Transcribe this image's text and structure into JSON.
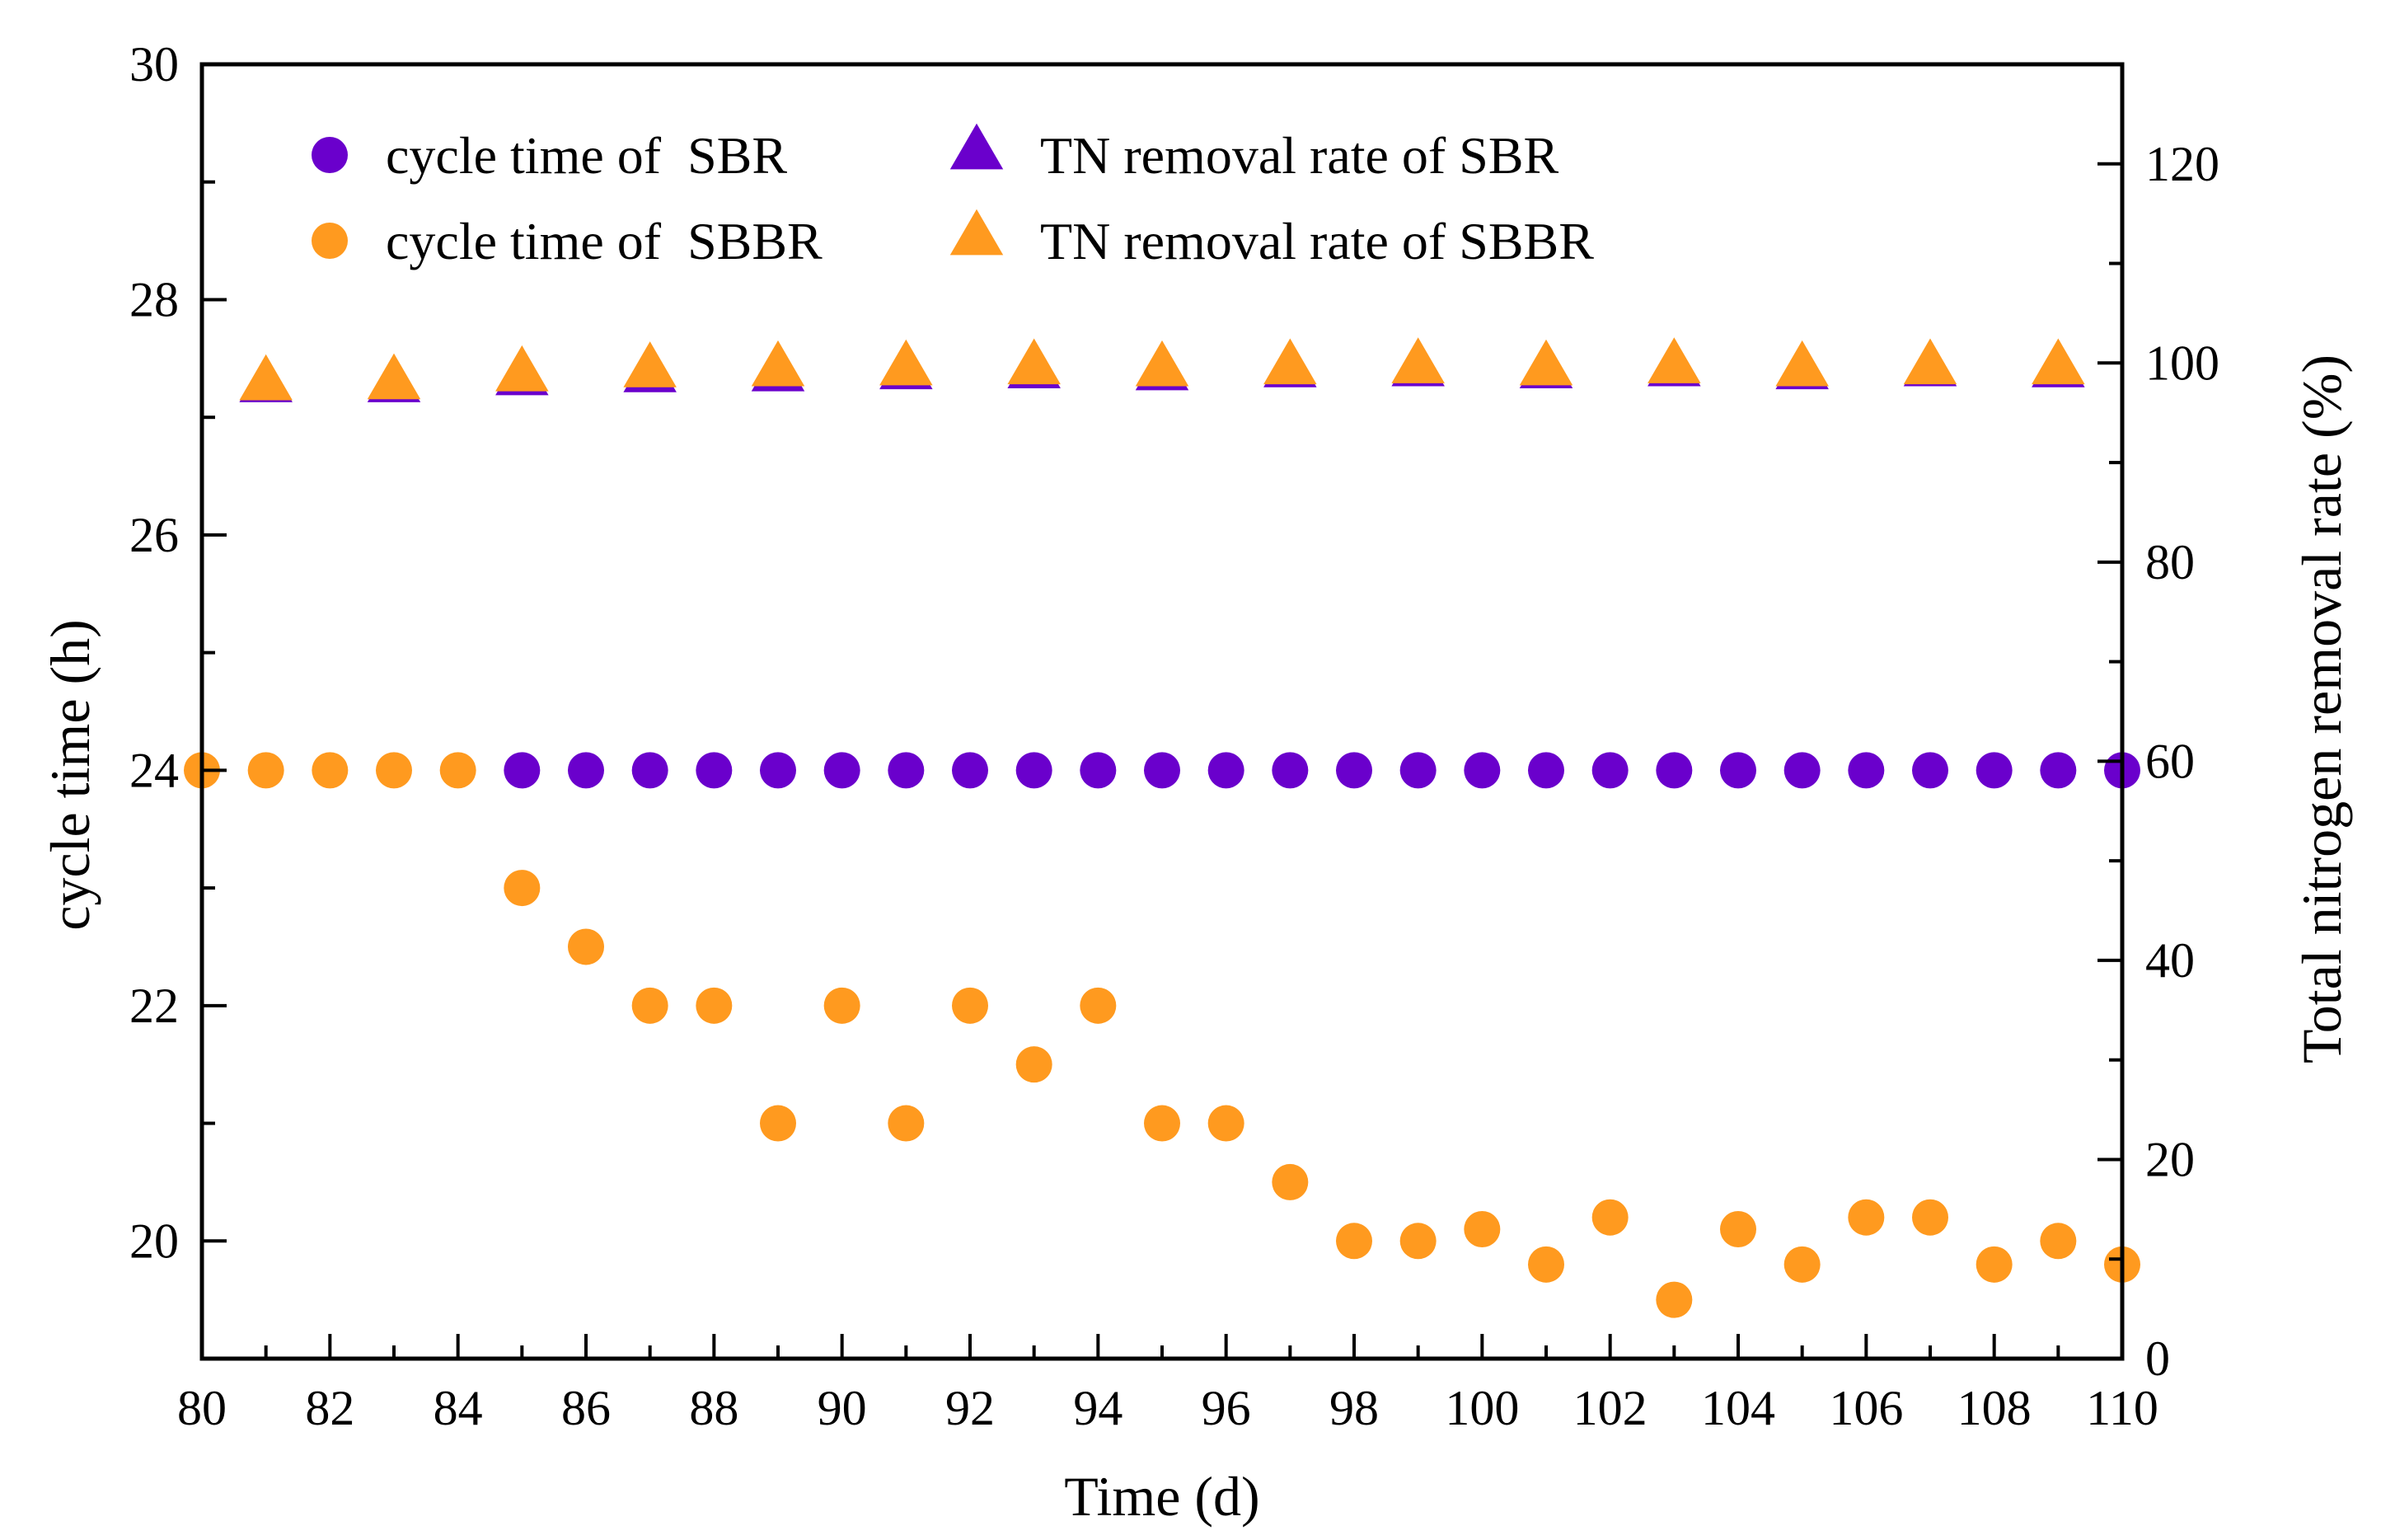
{
  "chart_data": {
    "type": "scatter",
    "xlabel": "Time (d)",
    "ylabel": "cycle time (h)",
    "y2label": "Total nitrogen removal rate (%)",
    "xlim": [
      80,
      110
    ],
    "ylim": [
      19,
      30
    ],
    "y2lim": [
      0,
      130
    ],
    "x_ticks": [
      80,
      82,
      84,
      86,
      88,
      90,
      92,
      94,
      96,
      98,
      100,
      102,
      104,
      106,
      108,
      110
    ],
    "y_ticks": [
      20,
      22,
      24,
      26,
      28,
      30
    ],
    "y2_ticks": [
      0,
      20,
      40,
      60,
      80,
      100,
      120
    ],
    "grid": false,
    "legend_position": "top-left",
    "colors": {
      "sbr": "#6a00cc",
      "sbbr": "#ff9a1f"
    },
    "series": [
      {
        "name": "cycle time of  SBR",
        "axis": "left",
        "marker": "circle",
        "color": "#6a00cc",
        "x": [
          85,
          86,
          87,
          88,
          89,
          90,
          91,
          92,
          93,
          94,
          95,
          96,
          97,
          98,
          99,
          100,
          101,
          102,
          103,
          104,
          105,
          106,
          107,
          108,
          109,
          110
        ],
        "y": [
          24,
          24,
          24,
          24,
          24,
          24,
          24,
          24,
          24,
          24,
          24,
          24,
          24,
          24,
          24,
          24,
          24,
          24,
          24,
          24,
          24,
          24,
          24,
          24,
          24,
          24
        ]
      },
      {
        "name": "cycle time of  SBBR",
        "axis": "left",
        "marker": "circle",
        "color": "#ff9a1f",
        "x": [
          80,
          81,
          82,
          83,
          84,
          85,
          86,
          87,
          88,
          89,
          90,
          91,
          92,
          93,
          94,
          95,
          96,
          97,
          98,
          99,
          100,
          101,
          102,
          103,
          104,
          105,
          106,
          107,
          108,
          109,
          110
        ],
        "y": [
          24,
          24,
          24,
          24,
          24,
          23,
          22.5,
          22,
          22,
          21,
          22,
          21,
          22,
          21.5,
          22,
          21,
          21,
          20.5,
          20,
          20,
          20.1,
          19.8,
          20.2,
          19.5,
          20.1,
          19.8,
          20.2,
          20.2,
          19.8,
          20,
          19.8
        ]
      },
      {
        "name": "TN removal rate of SBR",
        "axis": "right",
        "marker": "triangle",
        "color": "#6a00cc",
        "x": [
          81,
          83,
          85,
          87,
          89,
          91,
          93,
          95,
          97,
          99,
          101,
          103,
          105,
          107,
          109
        ],
        "y": [
          98,
          98,
          98.7,
          99,
          99.1,
          99.3,
          99.4,
          99.2,
          99.5,
          99.6,
          99.4,
          99.6,
          99.3,
          99.6,
          99.5
        ]
      },
      {
        "name": "TN removal rate of SBBR",
        "axis": "right",
        "marker": "triangle",
        "color": "#ff9a1f",
        "x": [
          81,
          83,
          85,
          87,
          89,
          91,
          93,
          95,
          97,
          99,
          101,
          103,
          105,
          107,
          109
        ],
        "y": [
          98.2,
          98.3,
          99.1,
          99.5,
          99.6,
          99.7,
          99.8,
          99.6,
          99.8,
          99.9,
          99.7,
          99.9,
          99.6,
          99.8,
          99.8
        ]
      }
    ]
  }
}
